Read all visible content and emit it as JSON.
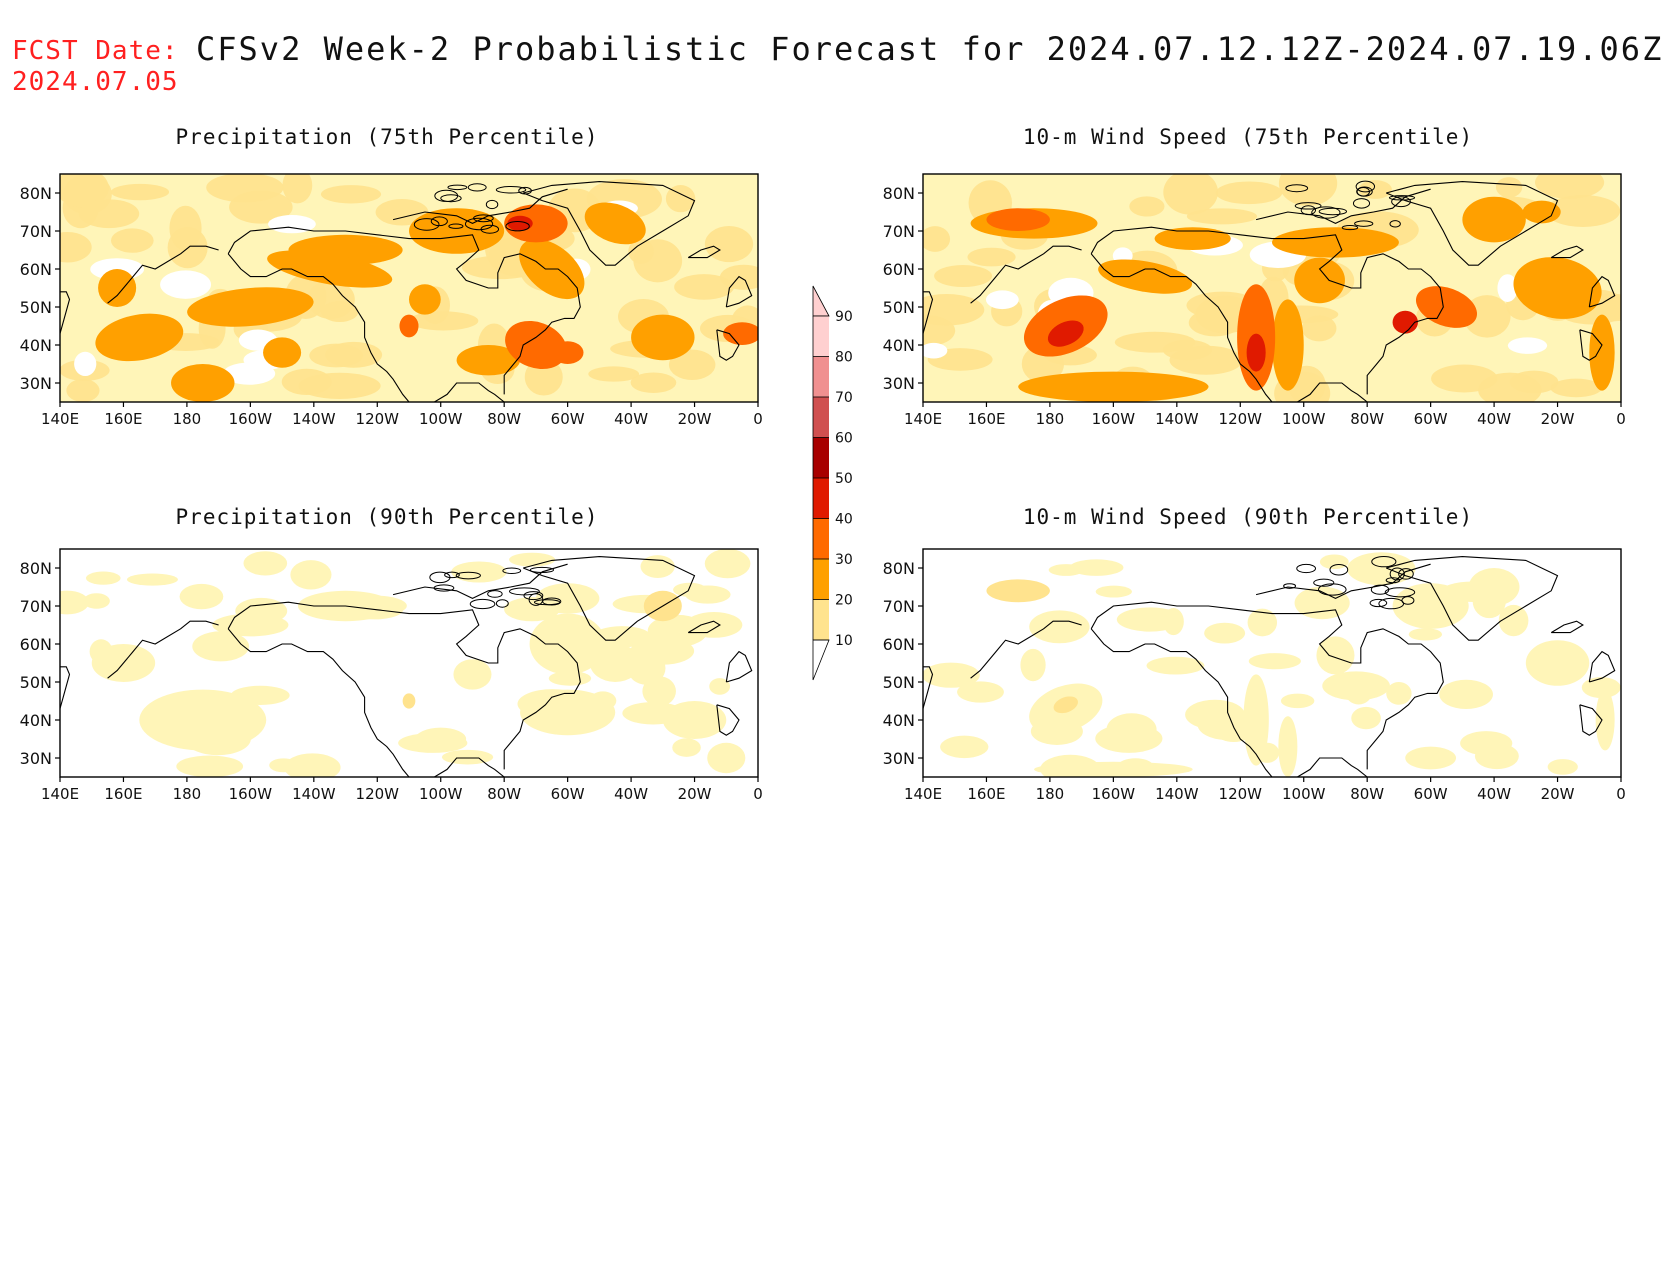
{
  "header": {
    "fcst_label": "FCST Date:",
    "fcst_date": "2024.07.05",
    "title": "CFSv2 Week-2 Probabilistic Forecast for 2024.07.12.12Z-2024.07.19.06Z"
  },
  "axes": {
    "lat_ticks": [
      "80N",
      "70N",
      "60N",
      "50N",
      "40N",
      "30N"
    ],
    "lon_ticks": [
      "140E",
      "160E",
      "180",
      "160W",
      "140W",
      "120W",
      "100W",
      "80W",
      "60W",
      "40W",
      "20W",
      "0"
    ]
  },
  "panels": [
    {
      "title": "Precipitation (75th Percentile)",
      "intensity": "high",
      "variable": "precipitation",
      "percentile": 75
    },
    {
      "title": "10-m Wind Speed (75th Percentile)",
      "intensity": "high",
      "variable": "wind",
      "percentile": 75
    },
    {
      "title": "Precipitation (90th Percentile)",
      "intensity": "low",
      "variable": "precipitation",
      "percentile": 90
    },
    {
      "title": "10-m Wind Speed (90th Percentile)",
      "intensity": "low",
      "variable": "wind",
      "percentile": 90
    }
  ],
  "colorbar": {
    "levels": [
      "10",
      "20",
      "30",
      "40",
      "50",
      "60",
      "70",
      "80",
      "90"
    ],
    "colors": [
      "#ffffff",
      "#fff5b8",
      "#ffe38e",
      "#ffa000",
      "#ff6a00",
      "#e01a00",
      "#a80000",
      "#d05050",
      "#f09090",
      "#ffd0d0"
    ]
  }
}
